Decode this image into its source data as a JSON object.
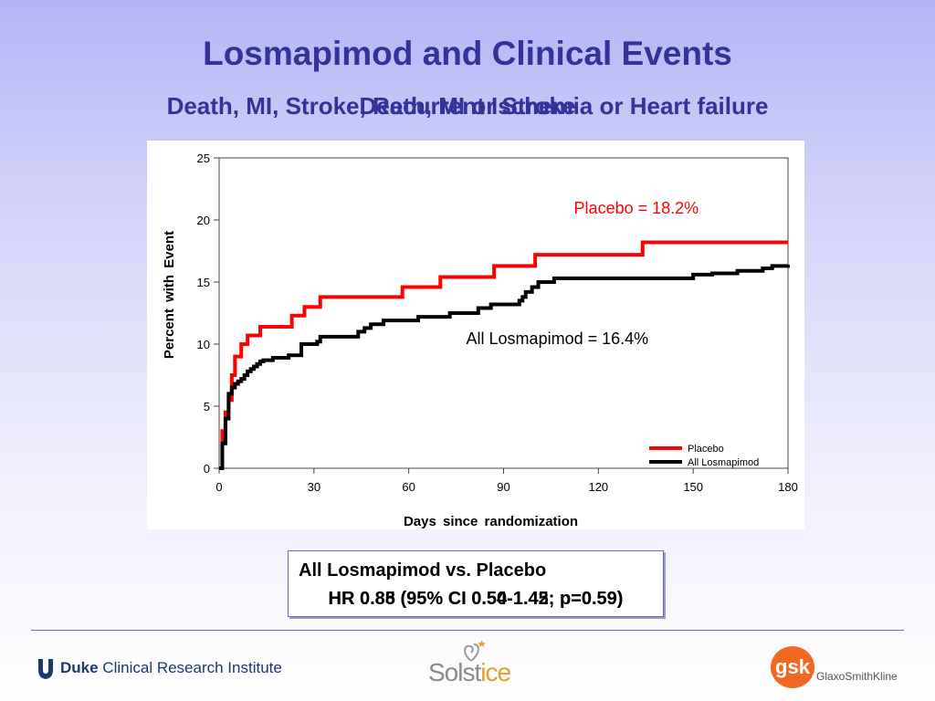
{
  "slide": {
    "title": "Losmapimod and Clinical Events",
    "subtitle_back": "Death, MI, Stroke, Recurrent Ischemia or Heart failure",
    "subtitle_front": "Death, MI or Stroke"
  },
  "colors": {
    "title": "#333399",
    "placebo": "#ff0000",
    "losmapimod": "#000000",
    "placebo_annotation": "#ff0000"
  },
  "chart_data": {
    "type": "line",
    "step": true,
    "xlabel": "Days since randomization",
    "ylabel": "Percent with Event",
    "xlim": [
      0,
      180
    ],
    "ylim": [
      0,
      25
    ],
    "xticks": [
      0,
      30,
      60,
      90,
      120,
      150,
      180
    ],
    "yticks": [
      0,
      5,
      10,
      15,
      20,
      25
    ],
    "grid": false,
    "legend_position": "bottom-right",
    "annotations": [
      {
        "text": "Placebo = 18.2%",
        "x": 132,
        "y": 20.5,
        "series": "Placebo"
      },
      {
        "text": "All Losmapimod = 16.4%",
        "x": 107,
        "y": 10.0,
        "series": "All Losmapimod"
      }
    ],
    "series": [
      {
        "name": "Placebo",
        "x": [
          0,
          1,
          2,
          3,
          4,
          5,
          7,
          9,
          13,
          23,
          27,
          32,
          58,
          70,
          87,
          100,
          134,
          180
        ],
        "y": [
          0,
          3,
          4.5,
          5.5,
          7.5,
          9,
          10,
          10.7,
          11.4,
          12.3,
          13.0,
          13.8,
          14.6,
          15.4,
          16.3,
          17.2,
          18.2,
          18.2
        ]
      },
      {
        "name": "All Losmapimod",
        "x": [
          0,
          1,
          2,
          3,
          4,
          5,
          6,
          7,
          8,
          9,
          10,
          11,
          12,
          13,
          14,
          17,
          22,
          26,
          31,
          32,
          44,
          46,
          48,
          52,
          63,
          73,
          82,
          86,
          95,
          96,
          97,
          99,
          101,
          106,
          150,
          156,
          164,
          172,
          175,
          180
        ],
        "y": [
          0,
          2,
          4,
          6,
          6.5,
          6.8,
          7.0,
          7.2,
          7.5,
          7.8,
          8.0,
          8.2,
          8.4,
          8.6,
          8.7,
          8.9,
          9.1,
          10.0,
          10.2,
          10.6,
          11.0,
          11.3,
          11.6,
          11.9,
          12.2,
          12.5,
          12.9,
          13.2,
          13.5,
          13.8,
          14.2,
          14.6,
          15.0,
          15.3,
          15.6,
          15.7,
          15.9,
          16.1,
          16.3,
          16.4
        ]
      }
    ]
  },
  "hr_box": {
    "line1": "All Losmapimod vs. Placebo",
    "line2_a": "HR 0.85 (95% CI 0.50-1.45; p=0.59)",
    "line2_b": "HR 0.88 (95% CI 0.54-1.42; p=0.59)"
  },
  "footer": {
    "duke_bold": "Duke",
    "duke_rest": " Clinical Research Institute",
    "solstice_main": "Solst",
    "solstice_accent": "ice",
    "gsk_letters": "gsk",
    "gsk_name": "GlaxoSmithKline"
  }
}
